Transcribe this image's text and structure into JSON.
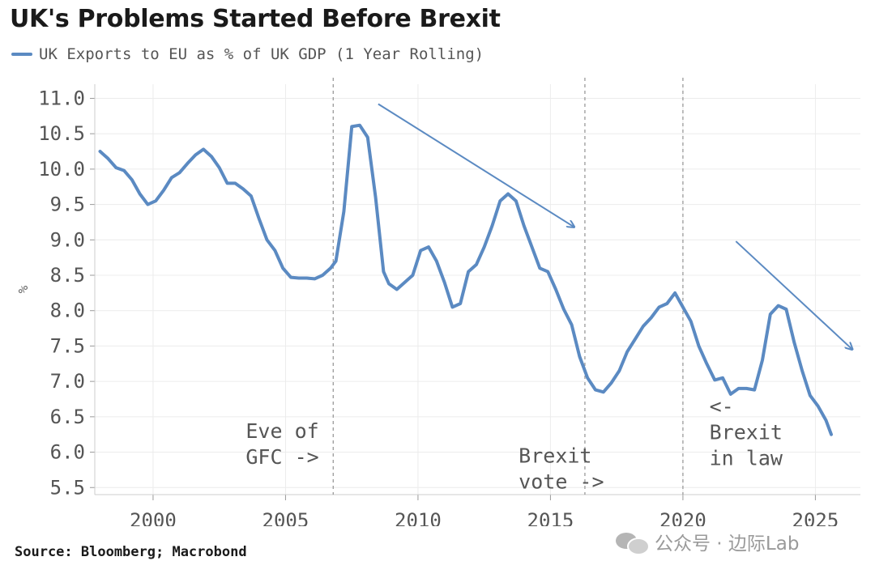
{
  "header": {
    "title": "UK's Problems Started Before Brexit",
    "legend_label": "UK Exports to EU as % of UK GDP (1 Year Rolling)"
  },
  "footer": {
    "source": "Source: Bloomberg; Macrobond",
    "watermark": "公众号 · 边际Lab"
  },
  "colors": {
    "series": "#5b8ac2",
    "arrow": "#5b8ac2",
    "grid": "#ececec",
    "axis": "#cccccc"
  },
  "chart_data": {
    "type": "line",
    "title": "UK's Problems Started Before Brexit",
    "xlabel": "",
    "ylabel": "%",
    "xlim": [
      1997.8,
      2026.7
    ],
    "ylim": [
      5.4,
      11.2
    ],
    "yticks": [
      "11.0",
      "10.5",
      "10.0",
      "9.5",
      "9.0",
      "8.5",
      "8.0",
      "7.5",
      "7.0",
      "6.5",
      "6.0",
      "5.5"
    ],
    "xticks": [
      "2000",
      "2005",
      "2010",
      "2015",
      "2020",
      "2025"
    ],
    "grid": true,
    "series": [
      {
        "name": "UK Exports to EU as % of UK GDP (1 Year Rolling)",
        "x": [
          1998.0,
          1998.3,
          1998.6,
          1998.9,
          1999.2,
          1999.5,
          1999.8,
          2000.1,
          2000.4,
          2000.7,
          2001.0,
          2001.3,
          2001.6,
          2001.9,
          2002.2,
          2002.5,
          2002.8,
          2003.1,
          2003.4,
          2003.7,
          2004.0,
          2004.3,
          2004.6,
          2004.9,
          2005.2,
          2005.5,
          2005.8,
          2006.1,
          2006.4,
          2006.7,
          2006.9,
          2007.2,
          2007.5,
          2007.8,
          2008.1,
          2008.4,
          2008.7,
          2008.9,
          2009.2,
          2009.5,
          2009.8,
          2010.1,
          2010.4,
          2010.7,
          2011.0,
          2011.3,
          2011.6,
          2011.9,
          2012.2,
          2012.5,
          2012.8,
          2013.1,
          2013.4,
          2013.7,
          2014.0,
          2014.3,
          2014.6,
          2014.9,
          2015.2,
          2015.5,
          2015.8,
          2016.1,
          2016.4,
          2016.7,
          2017.0,
          2017.3,
          2017.6,
          2017.9,
          2018.2,
          2018.5,
          2018.8,
          2019.1,
          2019.4,
          2019.7,
          2020.0,
          2020.3,
          2020.6,
          2020.9,
          2021.2,
          2021.5,
          2021.8,
          2022.1,
          2022.4,
          2022.7,
          2023.0,
          2023.3,
          2023.6,
          2023.9,
          2024.2,
          2024.5,
          2024.8,
          2025.1,
          2025.4,
          2025.6
        ],
        "values": [
          10.25,
          10.15,
          10.02,
          9.98,
          9.85,
          9.65,
          9.5,
          9.55,
          9.7,
          9.88,
          9.95,
          10.08,
          10.2,
          10.28,
          10.18,
          10.02,
          9.8,
          9.8,
          9.72,
          9.62,
          9.3,
          9.0,
          8.85,
          8.6,
          8.47,
          8.46,
          8.46,
          8.45,
          8.5,
          8.6,
          8.7,
          9.4,
          10.6,
          10.62,
          10.45,
          9.6,
          8.55,
          8.38,
          8.3,
          8.4,
          8.5,
          8.85,
          8.9,
          8.7,
          8.4,
          8.05,
          8.1,
          8.55,
          8.65,
          8.9,
          9.2,
          9.55,
          9.65,
          9.55,
          9.2,
          8.9,
          8.6,
          8.55,
          8.3,
          8.02,
          7.8,
          7.35,
          7.05,
          6.88,
          6.85,
          6.98,
          7.15,
          7.42,
          7.6,
          7.78,
          7.9,
          8.05,
          8.1,
          8.25,
          8.05,
          7.85,
          7.5,
          7.25,
          7.02,
          7.05,
          6.82,
          6.9,
          6.9,
          6.88,
          7.3,
          7.95,
          8.07,
          8.02,
          7.55,
          7.15,
          6.8,
          6.65,
          6.45,
          6.25
        ]
      }
    ],
    "vertical_markers": [
      {
        "x": 2006.8,
        "label_lines": [
          "Eve of",
          "GFC ->"
        ],
        "label_x": 2003.5,
        "label_y_top": 6.2
      },
      {
        "x": 2016.3,
        "label_lines": [
          "Brexit",
          "vote ->"
        ],
        "label_x": 2013.8,
        "label_y_top": 5.85
      },
      {
        "x": 2020.0,
        "label_lines": [
          "<-",
          "Brexit",
          "in law"
        ],
        "label_x": 2021.0,
        "label_y_top": 6.55
      }
    ],
    "trend_arrows": [
      {
        "x1": 2008.5,
        "y1": 10.92,
        "x2": 2015.9,
        "y2": 9.18
      },
      {
        "x1": 2022.0,
        "y1": 8.98,
        "x2": 2026.4,
        "y2": 7.45
      }
    ]
  }
}
